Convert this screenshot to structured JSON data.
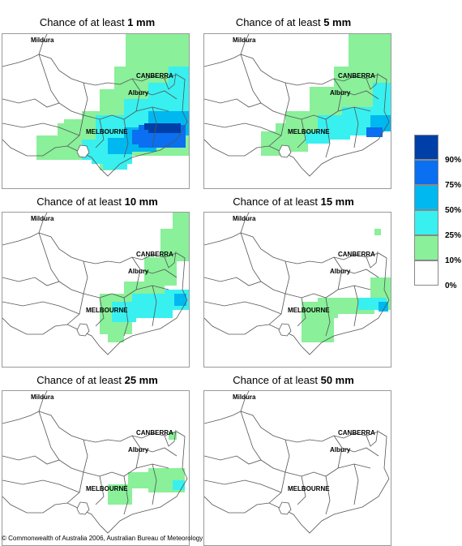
{
  "panels": [
    {
      "prefix": "Chance of at least ",
      "amount": "1 mm"
    },
    {
      "prefix": "Chance of at least ",
      "amount": "5 mm"
    },
    {
      "prefix": "Chance of at least ",
      "amount": "10 mm"
    },
    {
      "prefix": "Chance of at least ",
      "amount": "15 mm"
    },
    {
      "prefix": "Chance of at least ",
      "amount": "25 mm"
    },
    {
      "prefix": "Chance of at least ",
      "amount": "50 mm"
    }
  ],
  "place_labels": {
    "mildura": "Mildura",
    "canberra": "CANBERRA",
    "albury": "Albury",
    "melbourne": "MELBOURNE"
  },
  "legend": {
    "ticks": [
      "90%",
      "75%",
      "50%",
      "25%",
      "10%",
      "0%"
    ],
    "colors": [
      "#003fa8",
      "#0a6ff0",
      "#00b8f0",
      "#38f0f0",
      "#8af09a",
      "#ffffff"
    ]
  },
  "copyright": "© Commonwealth of Australia 2006, Australian Bureau of Meteorology"
}
